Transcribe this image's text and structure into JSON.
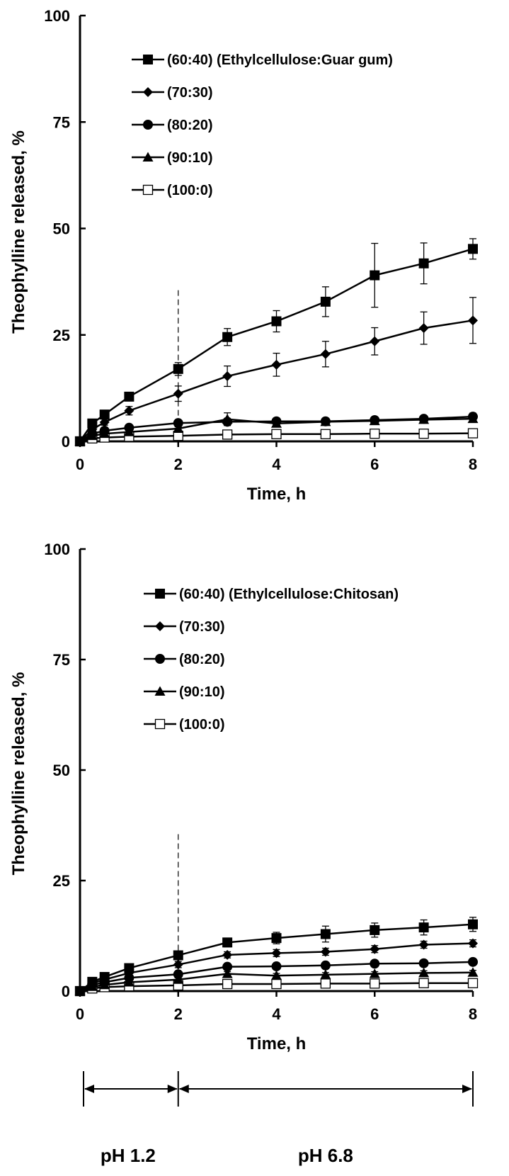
{
  "chart_data": [
    {
      "type": "line",
      "xlabel": "Time, h",
      "ylabel": "Theophylline released, %",
      "xlim": [
        0,
        8
      ],
      "ylim": [
        0,
        100
      ],
      "xticks": [
        0,
        2,
        4,
        6,
        8
      ],
      "yticks": [
        0,
        25,
        50,
        75,
        100
      ],
      "grid": false,
      "legend_position": "top-right",
      "vline_x": 2,
      "series": [
        {
          "name": "(60:40) (Ethylcellulose:Guar gum)",
          "marker": "square-filled",
          "x": [
            0,
            0.25,
            0.5,
            1,
            2,
            3,
            4,
            5,
            6,
            7,
            8
          ],
          "y": [
            0,
            4.2,
            6.3,
            10.5,
            17.0,
            24.5,
            28.2,
            32.8,
            39.0,
            41.8,
            45.2
          ],
          "err": [
            0,
            0.5,
            0.8,
            1.0,
            1.5,
            2.0,
            2.5,
            3.5,
            7.5,
            4.8,
            2.4
          ]
        },
        {
          "name": "(70:30)",
          "marker": "diamond-filled",
          "x": [
            0,
            0.25,
            0.5,
            1,
            2,
            3,
            4,
            5,
            6,
            7,
            8
          ],
          "y": [
            0,
            2.8,
            4.5,
            7.2,
            11.2,
            15.3,
            18.0,
            20.5,
            23.5,
            26.6,
            28.4
          ],
          "err": [
            0,
            0.5,
            0.7,
            1.0,
            1.8,
            2.4,
            2.7,
            3.0,
            3.2,
            3.8,
            5.4
          ]
        },
        {
          "name": "(80:20)",
          "marker": "circle-filled",
          "x": [
            0,
            0.25,
            0.5,
            1,
            2,
            3,
            4,
            5,
            6,
            7,
            8
          ],
          "y": [
            0,
            1.8,
            2.5,
            3.2,
            4.3,
            4.6,
            4.7,
            4.7,
            5.0,
            5.3,
            5.8
          ],
          "err": [
            0,
            0.3,
            0.4,
            0.5,
            0.6,
            0.6,
            0.6,
            0.6,
            0.7,
            0.7,
            0.8
          ]
        },
        {
          "name": "(90:10)",
          "marker": "triangle-filled",
          "x": [
            0,
            0.25,
            0.5,
            1,
            2,
            3,
            4,
            5,
            6,
            7,
            8
          ],
          "y": [
            0,
            1.3,
            1.8,
            2.2,
            3.0,
            5.2,
            4.2,
            4.6,
            4.8,
            5.1,
            5.3
          ],
          "err": [
            0,
            0.3,
            0.3,
            0.4,
            0.4,
            1.5,
            0.6,
            0.6,
            0.6,
            0.7,
            0.7
          ]
        },
        {
          "name": "(100:0)",
          "marker": "square-open",
          "x": [
            0,
            0.25,
            0.5,
            1,
            2,
            3,
            4,
            5,
            6,
            7,
            8
          ],
          "y": [
            0,
            0.7,
            0.9,
            1.1,
            1.3,
            1.6,
            1.7,
            1.7,
            1.8,
            1.8,
            1.9
          ],
          "err": [
            0,
            0.2,
            0.2,
            0.3,
            0.3,
            0.4,
            0.4,
            0.4,
            0.4,
            0.4,
            0.4
          ]
        }
      ]
    },
    {
      "type": "line",
      "xlabel": "Time, h",
      "ylabel": "Theophylline released, %",
      "xlim": [
        0,
        8
      ],
      "ylim": [
        0,
        100
      ],
      "xticks": [
        0,
        2,
        4,
        6,
        8
      ],
      "yticks": [
        0,
        25,
        50,
        75,
        100
      ],
      "grid": false,
      "legend_position": "top-right",
      "vline_x": 2,
      "series": [
        {
          "name": "(60:40) (Ethylcellulose:Chitosan)",
          "marker": "square-filled",
          "x": [
            0,
            0.25,
            0.5,
            1,
            2,
            3,
            4,
            5,
            6,
            7,
            8
          ],
          "y": [
            0,
            2.1,
            3.2,
            5.2,
            8.1,
            11.0,
            12.0,
            12.9,
            13.8,
            14.4,
            15.1
          ],
          "err": [
            0,
            0.4,
            0.5,
            0.7,
            0.9,
            1.0,
            1.3,
            1.8,
            1.6,
            1.7,
            1.6
          ]
        },
        {
          "name": "(70:30)",
          "marker": "diamond-filled",
          "x": [
            0,
            0.25,
            0.5,
            1,
            2,
            3,
            4,
            5,
            6,
            7,
            8
          ],
          "y": [
            0,
            1.8,
            2.6,
            4.1,
            6.0,
            8.2,
            8.6,
            8.9,
            9.5,
            10.5,
            10.8
          ],
          "err": [
            0,
            0.3,
            0.4,
            0.5,
            0.7,
            0.7,
            0.8,
            0.8,
            0.8,
            0.8,
            0.8
          ]
        },
        {
          "name": "(80:20)",
          "marker": "circle-filled",
          "x": [
            0,
            0.25,
            0.5,
            1,
            2,
            3,
            4,
            5,
            6,
            7,
            8
          ],
          "y": [
            0,
            1.4,
            2.0,
            3.0,
            3.8,
            5.5,
            5.6,
            5.8,
            6.2,
            6.3,
            6.6
          ],
          "err": [
            0,
            0.3,
            0.3,
            0.4,
            0.5,
            0.6,
            0.6,
            0.6,
            0.6,
            0.6,
            0.6
          ]
        },
        {
          "name": "(90:10)",
          "marker": "triangle-filled",
          "x": [
            0,
            0.25,
            0.5,
            1,
            2,
            3,
            4,
            5,
            6,
            7,
            8
          ],
          "y": [
            0,
            1.0,
            1.4,
            2.0,
            2.6,
            3.9,
            3.5,
            3.7,
            3.9,
            4.1,
            4.2
          ],
          "err": [
            0,
            0.2,
            0.3,
            0.3,
            0.4,
            0.5,
            0.5,
            0.5,
            0.5,
            0.5,
            0.5
          ]
        },
        {
          "name": "(100:0)",
          "marker": "square-open",
          "x": [
            0,
            0.25,
            0.5,
            1,
            2,
            3,
            4,
            5,
            6,
            7,
            8
          ],
          "y": [
            0,
            0.6,
            0.9,
            1.1,
            1.3,
            1.6,
            1.6,
            1.7,
            1.7,
            1.8,
            1.8
          ],
          "err": [
            0,
            0.2,
            0.2,
            0.2,
            0.3,
            0.3,
            0.3,
            0.3,
            0.3,
            0.3,
            0.3
          ]
        }
      ]
    }
  ],
  "phases": [
    {
      "label": "pH 1.2",
      "from": 0,
      "to": 2
    },
    {
      "label": "pH 6.8",
      "from": 2,
      "to": 8
    }
  ]
}
